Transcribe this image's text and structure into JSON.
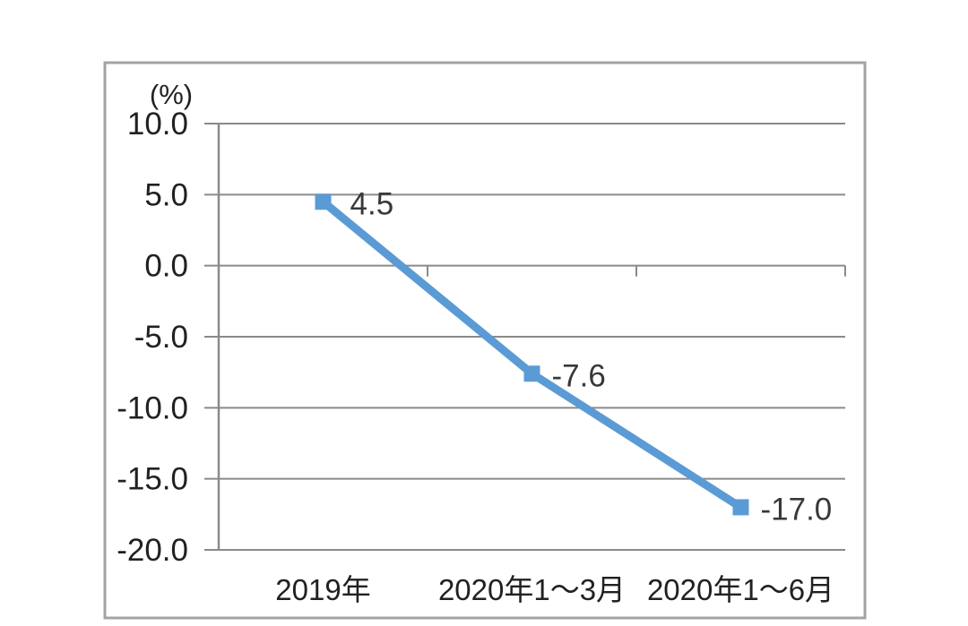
{
  "chart_data": {
    "type": "line",
    "title": "",
    "unit_label": "(%)",
    "categories": [
      "2019年",
      "2020年1～3月",
      "2020年1～6月"
    ],
    "values": [
      4.5,
      -7.6,
      -17.0
    ],
    "data_labels": [
      "4.5",
      "-7.6",
      "-17.0"
    ],
    "y_tick_labels": [
      "10.0",
      "5.0",
      "0.0",
      "-5.0",
      "-10.0",
      "-15.0",
      "-20.0"
    ],
    "ylim": [
      -20,
      10
    ],
    "y_tick_step": 5,
    "grid": true,
    "legend": false,
    "marker": "square",
    "colors": {
      "series": "#5B9BD5",
      "gridline": "#8A8A8A",
      "axis_line": "#8A8A8A",
      "frame_border": "#A3A3A3",
      "axis_text": "#212121",
      "data_label_text": "#383838",
      "background": "#FFFFFF"
    }
  }
}
